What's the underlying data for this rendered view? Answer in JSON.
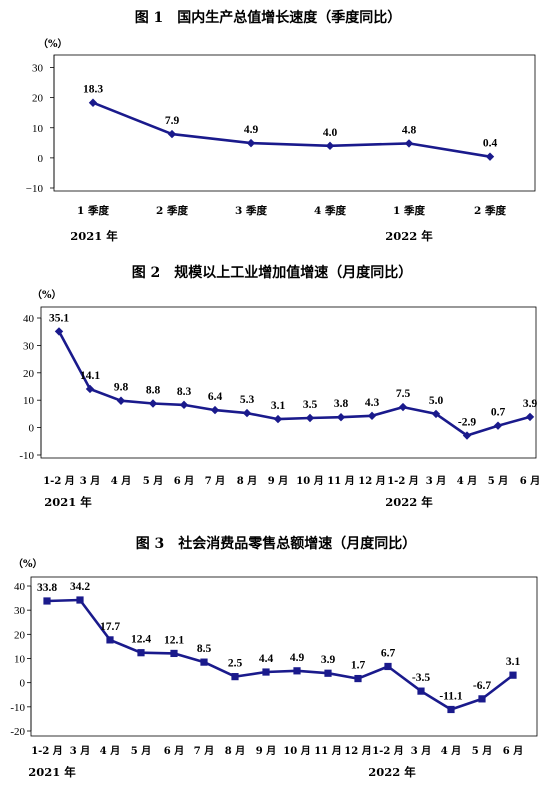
{
  "chart_data": [
    {
      "type": "line",
      "title": "图 1　国内生产总值增长速度（季度同比）",
      "unit": "（%）",
      "categories": [
        "1 季度",
        "2 季度",
        "3 季度",
        "4 季度",
        "1 季度",
        "2 季度"
      ],
      "year_labels": [
        "2021 年",
        "2022 年"
      ],
      "series": [
        {
          "values": [
            18.3,
            7.9,
            4.9,
            4.0,
            4.8,
            0.4
          ]
        }
      ],
      "data_labels": [
        "18.3",
        "7.9",
        "4.9",
        "4.0",
        "4.8",
        "0.4"
      ],
      "yticks": [
        "30",
        "20",
        "10",
        "0",
        "−10"
      ],
      "ylim": [
        -10,
        30
      ],
      "grid": false,
      "color": "#1a1a8c"
    },
    {
      "type": "line",
      "title": "图 2　规模以上工业增加值增速（月度同比）",
      "unit": "（%）",
      "categories": [
        "1-2 月",
        "3 月",
        "4 月",
        "5 月",
        "6 月",
        "7 月",
        "8 月",
        "9 月",
        "10 月",
        "11 月",
        "12 月",
        "1-2 月",
        "3 月",
        "4 月",
        "5 月",
        "6 月"
      ],
      "year_labels": [
        "2021 年",
        "2022 年"
      ],
      "series": [
        {
          "values": [
            35.1,
            14.1,
            9.8,
            8.8,
            8.3,
            6.4,
            5.3,
            3.1,
            3.5,
            3.8,
            4.3,
            7.5,
            5.0,
            -2.9,
            0.7,
            3.9
          ]
        }
      ],
      "data_labels": [
        "35.1",
        "14.1",
        "9.8",
        "8.8",
        "8.3",
        "6.4",
        "5.3",
        "3.1",
        "3.5",
        "3.8",
        "4.3",
        "7.5",
        "5.0",
        "-2.9",
        "0.7",
        "3.9"
      ],
      "yticks": [
        "40",
        "30",
        "20",
        "10",
        "0",
        "-10"
      ],
      "ylim": [
        -10,
        40
      ],
      "grid": false,
      "color": "#1a1a8c"
    },
    {
      "type": "line",
      "title": "图 3　社会消费品零售总额增速（月度同比）",
      "unit": "（%）",
      "categories": [
        "1-2 月",
        "3 月",
        "4 月",
        "5 月",
        "6 月",
        "7 月",
        "8 月",
        "9 月",
        "10 月",
        "11 月",
        "12 月",
        "1-2 月",
        "3 月",
        "4 月",
        "5 月",
        "6 月"
      ],
      "year_labels": [
        "2021 年",
        "2022 年"
      ],
      "series": [
        {
          "values": [
            33.8,
            34.2,
            17.7,
            12.4,
            12.1,
            8.5,
            2.5,
            4.4,
            4.9,
            3.9,
            1.7,
            6.7,
            -3.5,
            -11.1,
            -6.7,
            3.1
          ]
        }
      ],
      "data_labels": [
        "33.8",
        "34.2",
        "17.7",
        "12.4",
        "12.1",
        "8.5",
        "2.5",
        "4.4",
        "4.9",
        "3.9",
        "1.7",
        "6.7",
        "-3.5",
        "-11.1",
        "-6.7",
        "3.1"
      ],
      "yticks": [
        "40",
        "30",
        "20",
        "10",
        "0",
        "-10",
        "-20"
      ],
      "ylim": [
        -20,
        40
      ],
      "grid": false,
      "color": "#1a1a8c"
    }
  ]
}
